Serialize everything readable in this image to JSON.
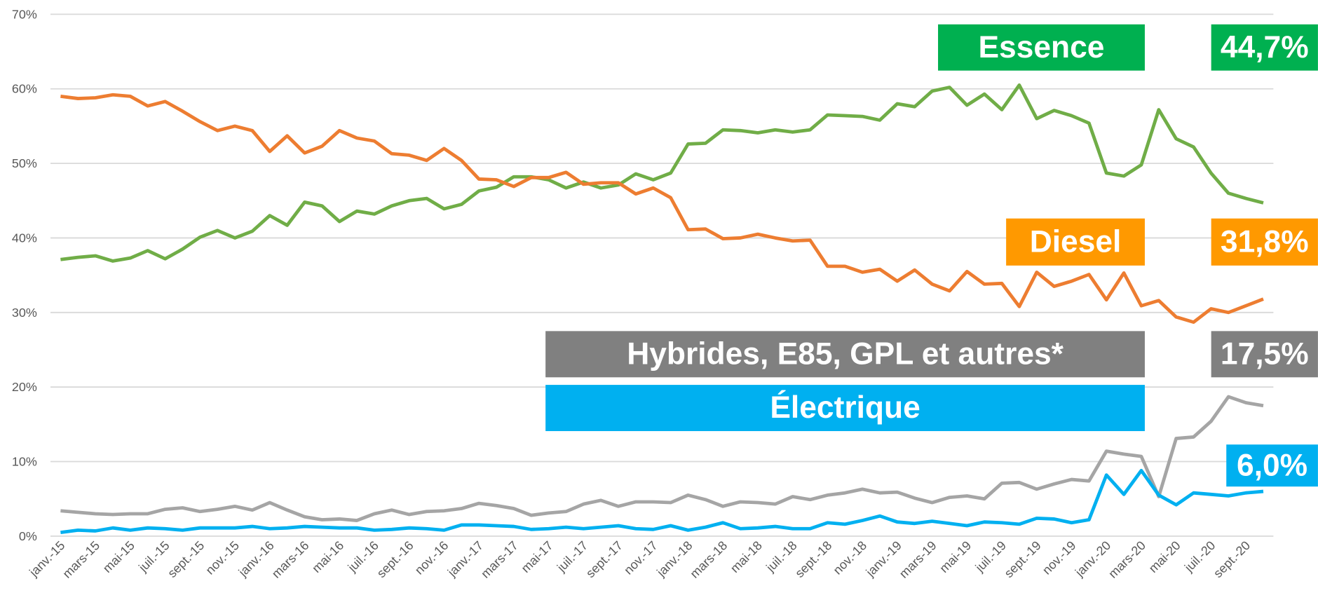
{
  "chart_data": {
    "type": "line",
    "categories": [
      "janv.-15",
      null,
      "mars-15",
      null,
      "mai-15",
      null,
      "juil.-15",
      null,
      "sept.-15",
      null,
      "nov.-15",
      null,
      "janv.-16",
      null,
      "mars-16",
      null,
      "mai-16",
      null,
      "juil.-16",
      null,
      "sept.-16",
      null,
      "nov.-16",
      null,
      "janv.-17",
      null,
      "mars-17",
      null,
      "mai-17",
      null,
      "juil.-17",
      null,
      "sept.-17",
      null,
      "nov.-17",
      null,
      "janv.-18",
      null,
      "mars-18",
      null,
      "mai-18",
      null,
      "juil.-18",
      null,
      "sept.-18",
      null,
      "nov.-18",
      null,
      "janv.-19",
      null,
      "mars-19",
      null,
      "mai-19",
      null,
      "juil.-19",
      null,
      "sept.-19",
      null,
      "nov.-19",
      null,
      "janv.-20",
      null,
      "mars-20",
      null,
      "mai-20",
      null,
      "juil.-20",
      null,
      "sept.-20",
      null
    ],
    "series": [
      {
        "name": "Essence",
        "color": "#70ad47",
        "label_color": "#00b050",
        "end_label": "44,7%",
        "values": [
          37.1,
          37.4,
          37.6,
          36.9,
          37.3,
          38.3,
          37.2,
          38.5,
          40.1,
          41.0,
          40.0,
          40.9,
          43.0,
          41.7,
          44.8,
          44.3,
          42.2,
          43.6,
          43.2,
          44.3,
          45.0,
          45.3,
          43.9,
          44.5,
          46.3,
          46.8,
          48.2,
          48.2,
          47.8,
          46.7,
          47.5,
          46.7,
          47.1,
          48.6,
          47.8,
          48.7,
          52.6,
          52.7,
          54.5,
          54.4,
          54.1,
          54.5,
          54.2,
          54.5,
          56.5,
          56.4,
          56.3,
          55.8,
          58.0,
          57.6,
          59.7,
          60.2,
          57.8,
          59.3,
          57.2,
          60.5,
          56.0,
          57.1,
          56.4,
          55.4,
          48.7,
          48.3,
          49.8,
          57.2,
          53.3,
          52.2,
          48.7,
          46.0,
          45.3,
          44.7
        ]
      },
      {
        "name": "Diesel",
        "color": "#ed7d31",
        "label_color": "#ff9900",
        "end_label": "31,8%",
        "values": [
          59.0,
          58.7,
          58.8,
          59.2,
          59.0,
          57.7,
          58.3,
          57.0,
          55.6,
          54.4,
          55.0,
          54.4,
          51.6,
          53.7,
          51.4,
          52.3,
          54.4,
          53.4,
          53.0,
          51.3,
          51.1,
          50.4,
          52.0,
          50.4,
          47.9,
          47.8,
          46.9,
          48.1,
          48.1,
          48.8,
          47.2,
          47.4,
          47.4,
          45.9,
          46.7,
          45.4,
          41.1,
          41.2,
          39.9,
          40.0,
          40.5,
          40.0,
          39.6,
          39.7,
          36.2,
          36.2,
          35.4,
          35.8,
          34.2,
          35.7,
          33.8,
          32.9,
          35.5,
          33.8,
          33.9,
          30.8,
          35.4,
          33.5,
          34.2,
          35.1,
          31.7,
          35.3,
          30.9,
          31.6,
          29.4,
          28.7,
          30.5,
          30.0,
          30.9,
          31.8
        ]
      },
      {
        "name": "Hybrides, E85, GPL et autres*",
        "color": "#a5a5a5",
        "label_color": "#808080",
        "end_label": "17,5%",
        "values": [
          3.4,
          3.2,
          3.0,
          2.9,
          3.0,
          3.0,
          3.6,
          3.8,
          3.3,
          3.6,
          4.0,
          3.5,
          4.5,
          3.5,
          2.6,
          2.2,
          2.3,
          2.1,
          3.0,
          3.5,
          2.9,
          3.3,
          3.4,
          3.7,
          4.4,
          4.1,
          3.7,
          2.8,
          3.1,
          3.3,
          4.3,
          4.8,
          4.0,
          4.6,
          4.6,
          4.5,
          5.5,
          4.9,
          4.0,
          4.6,
          4.5,
          4.3,
          5.3,
          4.9,
          5.5,
          5.8,
          6.3,
          5.8,
          5.9,
          5.1,
          4.5,
          5.2,
          5.4,
          5.0,
          7.1,
          7.2,
          6.3,
          7.0,
          7.6,
          7.4,
          11.4,
          11.0,
          10.7,
          5.3,
          13.1,
          13.3,
          15.4,
          18.7,
          17.9,
          17.5
        ]
      },
      {
        "name": "Électrique",
        "color": "#00b0f0",
        "label_color": "#00b0f0",
        "end_label": "6,0%",
        "values": [
          0.5,
          0.8,
          0.7,
          1.1,
          0.8,
          1.1,
          1.0,
          0.8,
          1.1,
          1.1,
          1.1,
          1.3,
          1.0,
          1.1,
          1.3,
          1.2,
          1.1,
          1.1,
          0.8,
          0.9,
          1.1,
          1.0,
          0.8,
          1.5,
          1.5,
          1.4,
          1.3,
          0.9,
          1.0,
          1.2,
          1.0,
          1.2,
          1.4,
          1.0,
          0.9,
          1.4,
          0.8,
          1.2,
          1.8,
          1.0,
          1.1,
          1.3,
          1.0,
          1.0,
          1.8,
          1.6,
          2.1,
          2.7,
          1.9,
          1.7,
          2.0,
          1.7,
          1.4,
          1.9,
          1.8,
          1.6,
          2.4,
          2.3,
          1.8,
          2.2,
          8.2,
          5.6,
          8.8,
          5.5,
          4.2,
          5.8,
          5.6,
          5.4,
          5.8,
          6.0
        ]
      }
    ],
    "ylim": [
      0,
      70
    ],
    "yticks": [
      {
        "value": 0,
        "label": "0%"
      },
      {
        "value": 10,
        "label": "10%"
      },
      {
        "value": 20,
        "label": "20%"
      },
      {
        "value": 30,
        "label": "30%"
      },
      {
        "value": 40,
        "label": "40%"
      },
      {
        "value": 50,
        "label": "50%"
      },
      {
        "value": 60,
        "label": "60%"
      },
      {
        "value": 70,
        "label": "70%"
      }
    ],
    "grid": true
  }
}
